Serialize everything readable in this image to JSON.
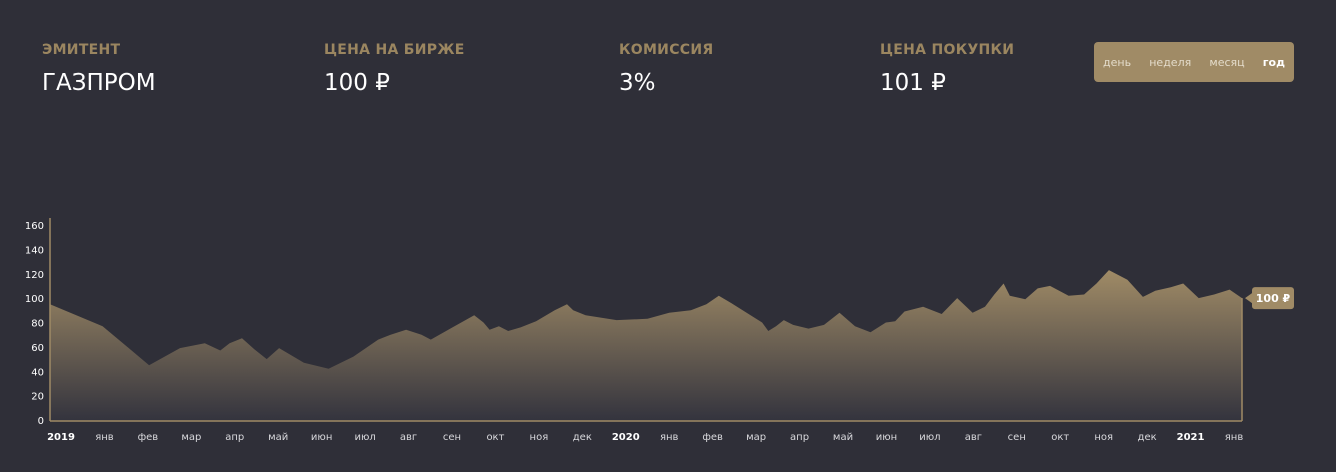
{
  "stats": [
    {
      "label": "ЭМИТЕНТ",
      "value": "ГАЗПРОМ"
    },
    {
      "label": "ЦЕНА НА БИРЖЕ",
      "value": "100 ₽"
    },
    {
      "label": "КОМИССИЯ",
      "value": "3%"
    },
    {
      "label": "ЦЕНА ПОКУПКИ",
      "value": "101 ₽"
    }
  ],
  "periods": [
    "день",
    "неделя",
    "месяц",
    "год"
  ],
  "active_period": "год",
  "colors": {
    "background": "#2f2f38",
    "accent": "#a08b66",
    "label": "#9b8660"
  },
  "chart_data": {
    "type": "area",
    "title": "",
    "xlabel": "",
    "ylabel": "",
    "ylim": [
      0,
      160
    ],
    "y_ticks": [
      0,
      20,
      40,
      60,
      80,
      100,
      120,
      140,
      160
    ],
    "grid": false,
    "legend": "none",
    "x_tick_labels": [
      {
        "label": "2019",
        "year": true
      },
      {
        "label": "янв",
        "year": false
      },
      {
        "label": "фев",
        "year": false
      },
      {
        "label": "мар",
        "year": false
      },
      {
        "label": "апр",
        "year": false
      },
      {
        "label": "май",
        "year": false
      },
      {
        "label": "июн",
        "year": false
      },
      {
        "label": "июл",
        "year": false
      },
      {
        "label": "авг",
        "year": false
      },
      {
        "label": "сен",
        "year": false
      },
      {
        "label": "окт",
        "year": false
      },
      {
        "label": "ноя",
        "year": false
      },
      {
        "label": "дек",
        "year": false
      },
      {
        "label": "2020",
        "year": true
      },
      {
        "label": "янв",
        "year": false
      },
      {
        "label": "фев",
        "year": false
      },
      {
        "label": "мар",
        "year": false
      },
      {
        "label": "апр",
        "year": false
      },
      {
        "label": "май",
        "year": false
      },
      {
        "label": "июн",
        "year": false
      },
      {
        "label": "июл",
        "year": false
      },
      {
        "label": "авг",
        "year": false
      },
      {
        "label": "сен",
        "year": false
      },
      {
        "label": "окт",
        "year": false
      },
      {
        "label": "ноя",
        "year": false
      },
      {
        "label": "дек",
        "year": false
      },
      {
        "label": "2021",
        "year": true
      },
      {
        "label": "янв",
        "year": false
      }
    ],
    "x": [
      0,
      1.7,
      3.2,
      4.2,
      5.0,
      5.5,
      5.8,
      6.2,
      6.6,
      7.0,
      7.4,
      8.2,
      9.0,
      9.8,
      10.6,
      11.0,
      11.5,
      11.75,
      12.0,
      12.3,
      13.0,
      13.7,
      14.0,
      14.2,
      14.5,
      14.8,
      15.2,
      15.7,
      16.3,
      16.7,
      16.9,
      17.1,
      17.3,
      18.3,
      19.3,
      20.0,
      20.7,
      21.2,
      21.6,
      22.0,
      22.5,
      23.0,
      23.2,
      23.45,
      23.7,
      24.0,
      24.5,
      25.0,
      25.5,
      26.0,
      26.5,
      27.0,
      27.3,
      27.6,
      28.2,
      28.8,
      29.3,
      29.8,
      30.2,
      30.5,
      30.8,
      31.0,
      31.5,
      31.9,
      32.3,
      32.9,
      33.4,
      33.8,
      34.2,
      34.8,
      35.3,
      35.7,
      36.2,
      36.6,
      37.1,
      37.6,
      38.1,
      38.5
    ],
    "y": [
      95,
      77,
      45,
      59,
      63,
      57,
      63,
      67,
      58,
      50,
      59,
      47,
      42,
      52,
      66,
      70,
      74,
      72,
      70,
      66,
      76,
      86,
      80,
      74,
      77,
      73,
      76,
      81,
      90,
      95,
      90,
      88,
      86,
      82,
      83,
      88,
      90,
      95,
      102,
      96,
      88,
      80,
      73,
      77,
      82,
      78,
      75,
      78,
      88,
      77,
      72,
      80,
      81,
      89,
      93,
      87,
      100,
      88,
      93,
      103,
      112,
      102,
      99,
      108,
      110,
      102,
      103,
      112,
      123,
      115,
      101,
      106,
      109,
      112,
      100,
      103,
      107,
      100
    ],
    "last_label": "100 ₽"
  }
}
